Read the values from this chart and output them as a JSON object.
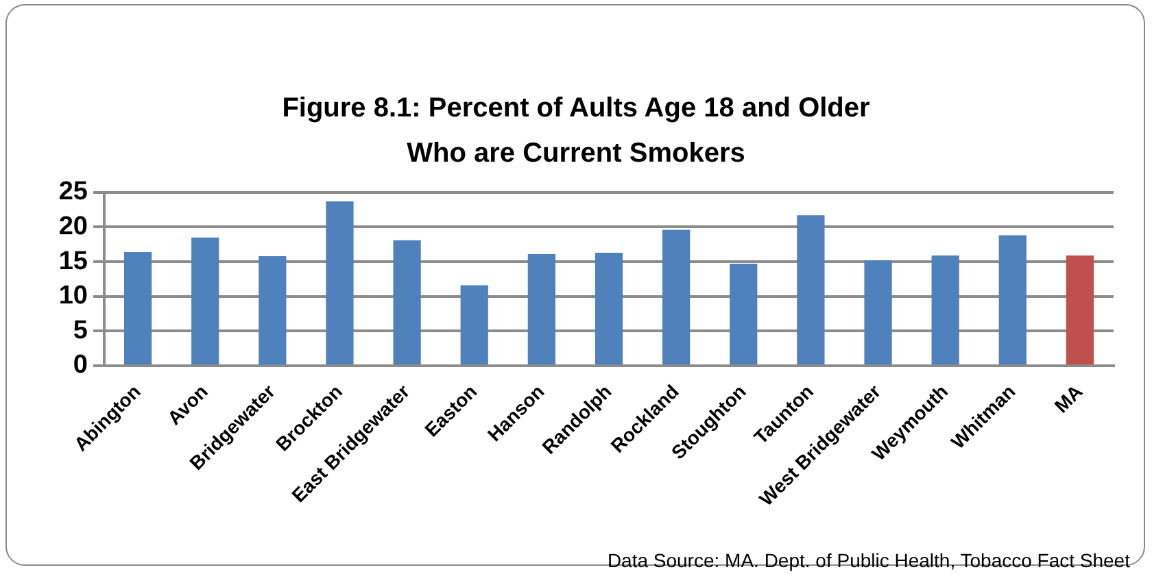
{
  "chart_data": {
    "type": "bar",
    "title": "Figure 8.1: Percent of Aults Age 18 and Older Who are Current Smokers",
    "categories": [
      "Abington",
      "Avon",
      "Bridgewater",
      "Brockton",
      "East Bridgewater",
      "Easton",
      "Hanson",
      "Randolph",
      "Rockland",
      "Stoughton",
      "Taunton",
      "West Bridgewater",
      "Weymouth",
      "Whitman",
      "MA"
    ],
    "values": [
      16.4,
      18.5,
      15.8,
      23.7,
      18.1,
      11.6,
      16.1,
      16.3,
      19.6,
      14.7,
      21.7,
      15.2,
      15.9,
      18.8,
      15.9
    ],
    "colors": [
      "#4f81bd",
      "#4f81bd",
      "#4f81bd",
      "#4f81bd",
      "#4f81bd",
      "#4f81bd",
      "#4f81bd",
      "#4f81bd",
      "#4f81bd",
      "#4f81bd",
      "#4f81bd",
      "#4f81bd",
      "#4f81bd",
      "#4f81bd",
      "#c0504d"
    ],
    "ylim": [
      0,
      25
    ],
    "yticks": [
      0,
      5,
      10,
      15,
      20,
      25
    ],
    "grid": "y",
    "annotations": [
      "Data Source: MA. Dept. of Public Health, Tobacco Fact Sheet"
    ]
  }
}
